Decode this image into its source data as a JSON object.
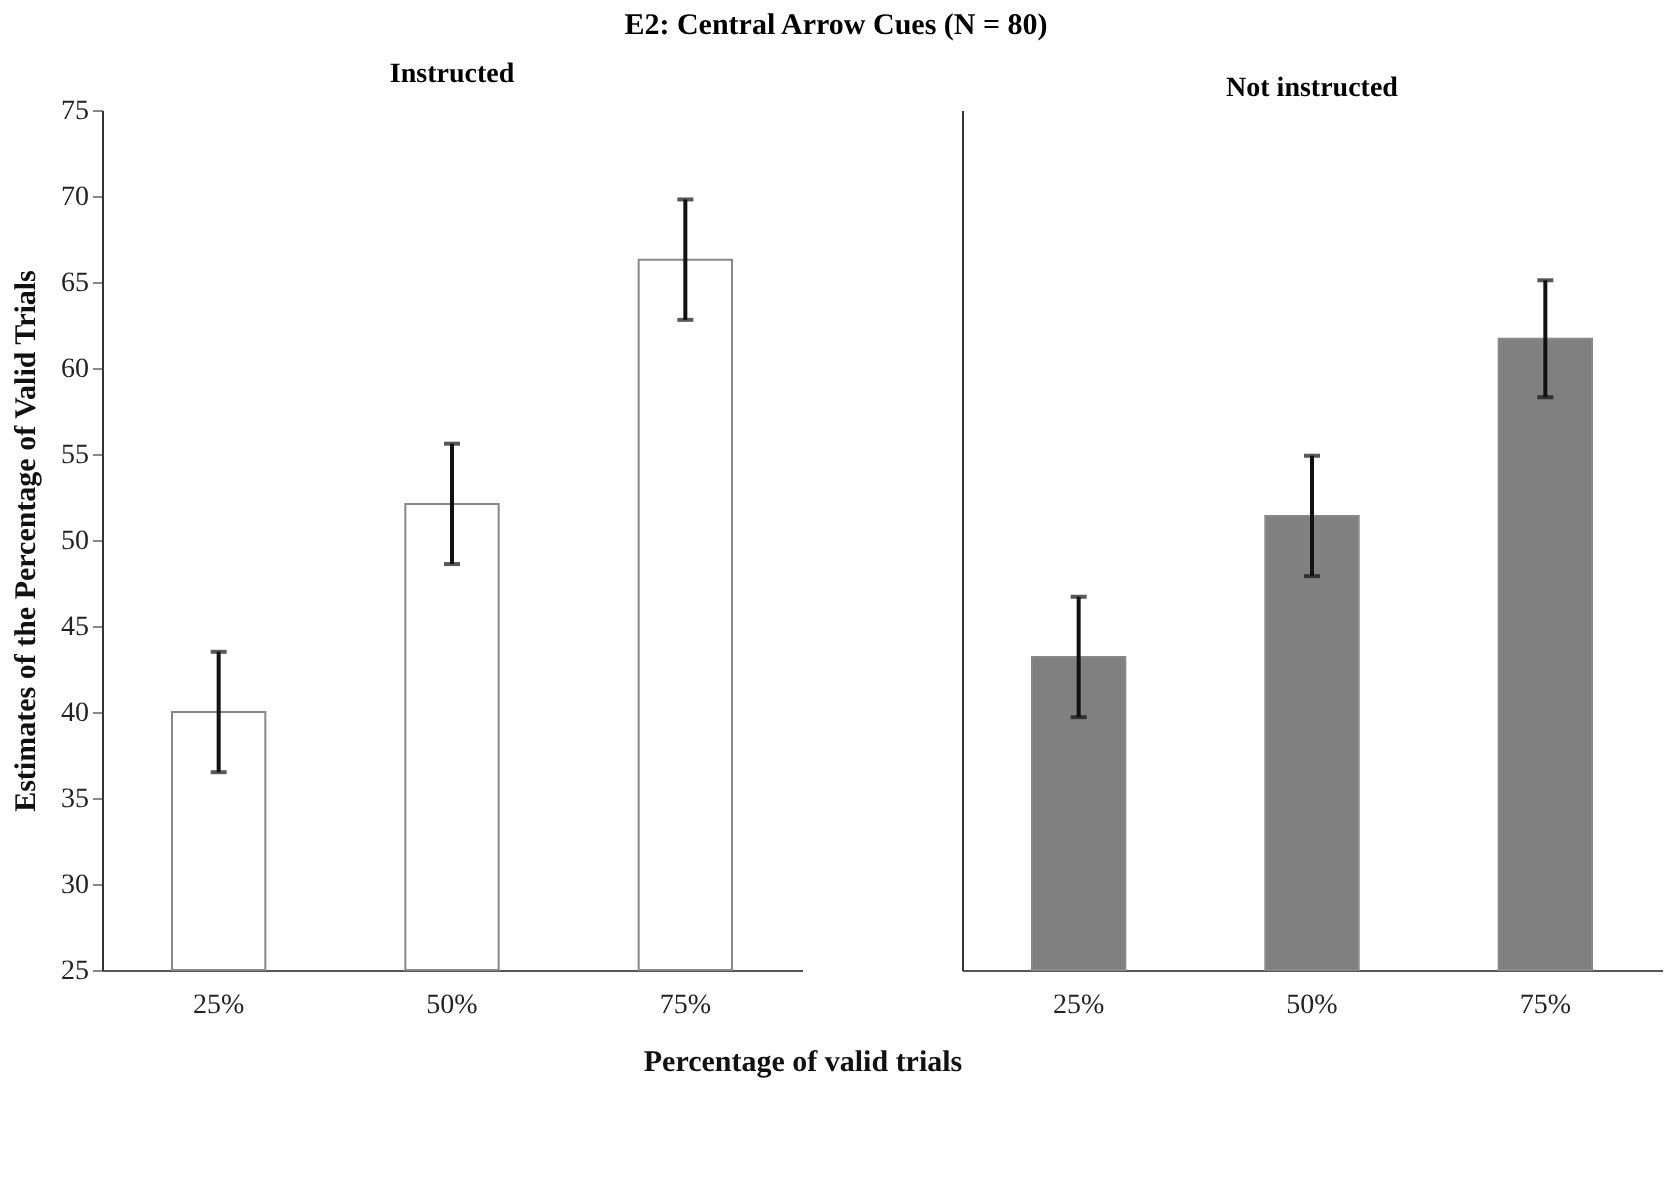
{
  "chart_data": [
    {
      "type": "bar",
      "title": "E2: Central Arrow Cues (N = 80)",
      "subtitle": "Instructed",
      "xlabel": "Percentage of valid trials",
      "ylabel": "Estimates of the Percentage of Valid Trials",
      "categories": [
        "25%",
        "50%",
        "75%"
      ],
      "values": [
        40.0,
        52.1,
        66.3
      ],
      "errors": [
        3.5,
        3.5,
        3.5
      ],
      "color": "#ffffff",
      "ylim": [
        25,
        75
      ],
      "yticks": [
        25,
        30,
        35,
        40,
        45,
        50,
        55,
        60,
        65,
        70,
        75
      ]
    },
    {
      "type": "bar",
      "subtitle": "Not instructed",
      "categories": [
        "25%",
        "50%",
        "75%"
      ],
      "values": [
        43.2,
        51.4,
        61.7
      ],
      "errors": [
        3.5,
        3.5,
        3.4
      ],
      "color": "#808080",
      "ylim": [
        25,
        75
      ],
      "tick_labels": "x"
    }
  ]
}
